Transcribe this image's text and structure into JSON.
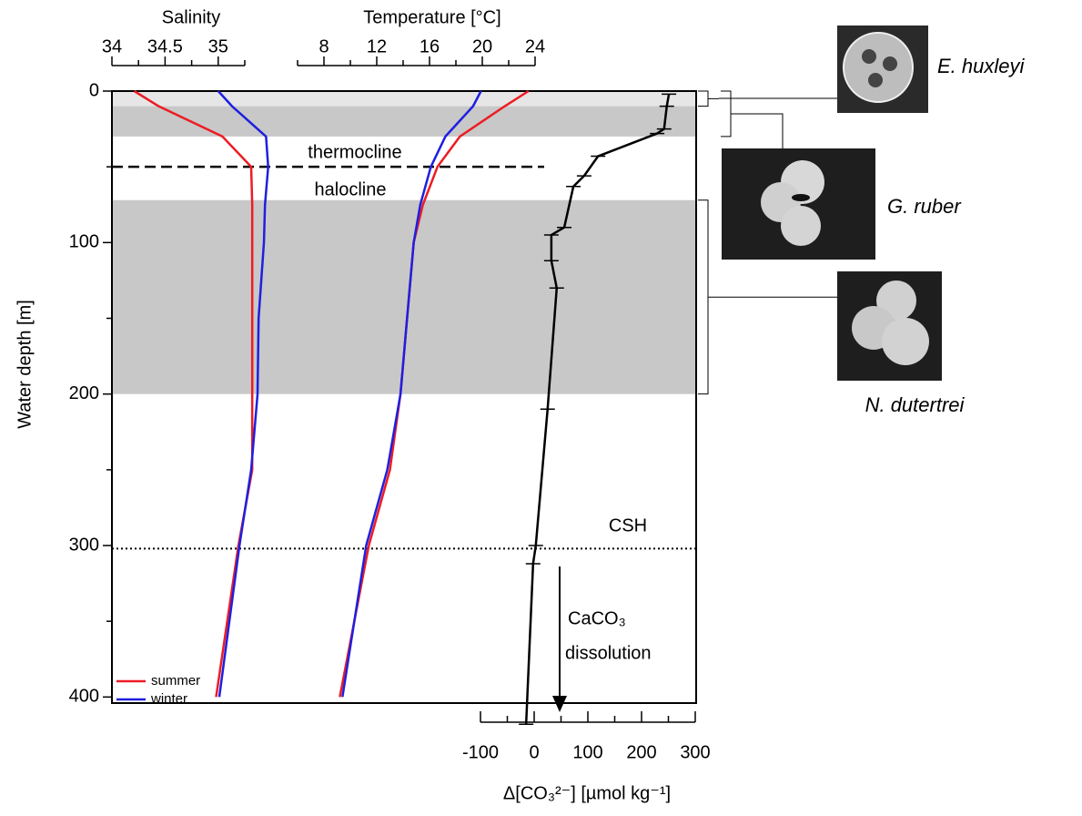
{
  "chart_data": {
    "type": "profile",
    "y_label": "Water depth [m]",
    "ylim": [
      0,
      404
    ],
    "yticks": [
      0,
      100,
      200,
      300,
      400
    ],
    "yminor": [
      50,
      150,
      250,
      350
    ],
    "salinity_axis": {
      "label": "Salinity",
      "xlim": [
        34,
        35.25
      ],
      "xticks": [
        34,
        34.5,
        35
      ],
      "xminor": [
        34.25,
        34.75,
        35.25
      ]
    },
    "temperature_axis": {
      "label": "Temperature [°C]",
      "xlim": [
        6,
        24
      ],
      "xticks": [
        8,
        12,
        16,
        20,
        24
      ],
      "xminor": [
        6,
        10,
        14,
        18,
        22
      ]
    },
    "co3_axis": {
      "label": "Δ[CO₃²⁻] [µmol kg⁻¹]",
      "xlim": [
        -100,
        300
      ],
      "xticks": [
        -100,
        0,
        100,
        200,
        300
      ],
      "xminor": [
        -50,
        50,
        150,
        250
      ]
    },
    "depths": [
      0,
      10,
      30,
      50,
      75,
      100,
      150,
      200,
      250,
      300,
      400
    ],
    "series": [
      {
        "name": "summer",
        "color": "#ed1c24",
        "salinity": [
          34.21,
          34.44,
          35.04,
          35.31,
          35.32,
          35.32,
          35.32,
          35.32,
          35.32,
          35.19,
          34.98
        ],
        "temperature": [
          23.5,
          21.7,
          18.3,
          16.6,
          15.5,
          14.8,
          14.3,
          13.8,
          13.0,
          11.4,
          9.2
        ]
      },
      {
        "name": "winter",
        "color": "#1f1fe0",
        "salinity": [
          35.0,
          35.13,
          35.45,
          35.47,
          35.44,
          35.43,
          35.38,
          35.37,
          35.31,
          35.2,
          35.01
        ],
        "temperature": [
          19.9,
          19.3,
          17.2,
          16.1,
          15.3,
          14.8,
          14.3,
          13.8,
          12.8,
          11.2,
          9.4
        ]
      }
    ],
    "co3": {
      "color": "#000000",
      "depth": [
        2,
        10,
        25,
        28,
        43,
        56,
        63,
        90,
        95,
        112,
        130,
        210,
        300,
        312,
        418
      ],
      "values": [
        251,
        247,
        242,
        229,
        119,
        93,
        73,
        56,
        32,
        32,
        42,
        25,
        3,
        -2,
        -15
      ]
    },
    "bands": [
      {
        "from": 0,
        "to": 10,
        "color": "#e6e6e6"
      },
      {
        "from": 10,
        "to": 30,
        "color": "#c8c8c8"
      },
      {
        "from": 72,
        "to": 200,
        "color": "#c8c8c8"
      }
    ],
    "boundary": {
      "depth": 50,
      "labels": [
        "thermocline",
        "halocline"
      ]
    },
    "csh": {
      "depth": 302,
      "label": "CSH"
    },
    "dissolution": [
      "CaCO₃",
      "dissolution"
    ],
    "species": [
      {
        "name": "E. huxleyi",
        "from": 0,
        "to": 10
      },
      {
        "name": "G. ruber",
        "from": 0,
        "to": 30
      },
      {
        "name": "N. dutertrei",
        "from": 72,
        "to": 200
      }
    ],
    "legend": "lower left"
  }
}
